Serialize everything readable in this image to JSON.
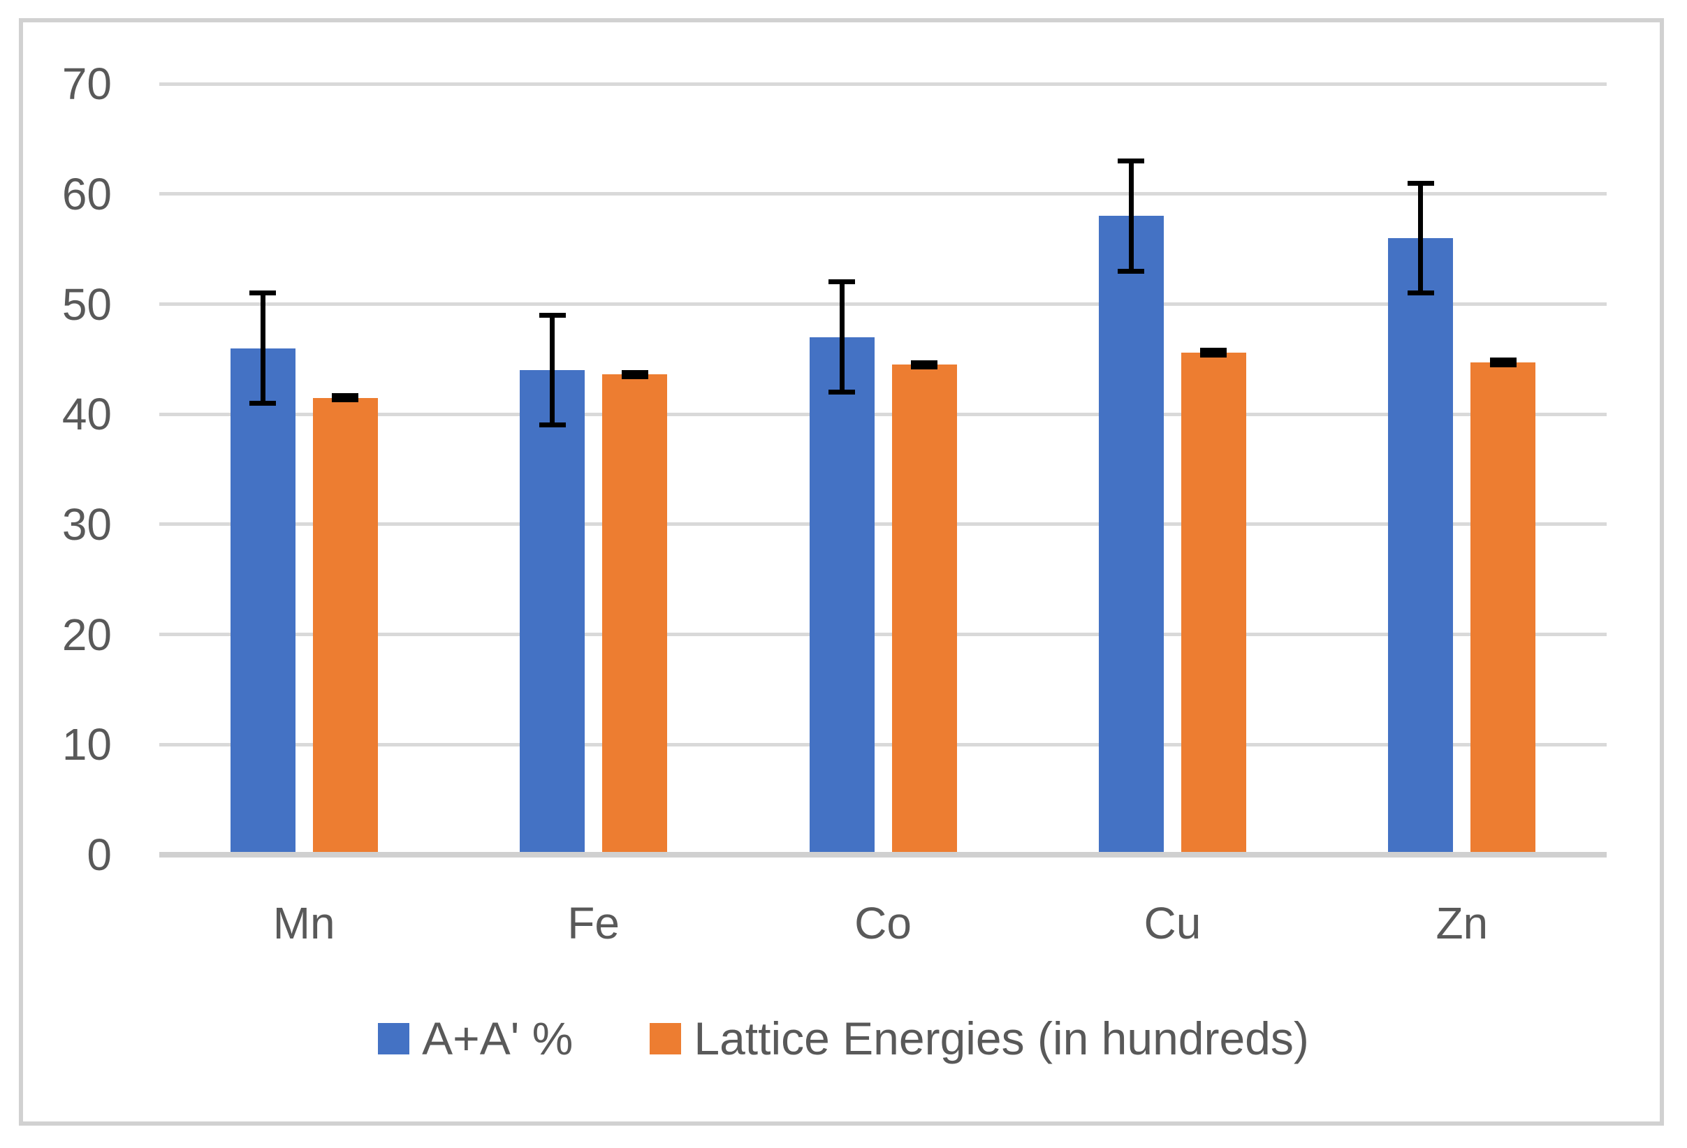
{
  "chart_data": {
    "type": "bar",
    "title": "",
    "categories": [
      "Mn",
      "Fe",
      "Co",
      "Cu",
      "Zn"
    ],
    "series": [
      {
        "name": "A+A' %",
        "color": "#4472C4",
        "values": [
          46,
          44,
          47,
          58,
          56
        ],
        "error_plus": [
          5,
          5,
          5,
          5,
          5
        ],
        "error_minus": [
          5,
          5,
          5,
          5,
          5
        ]
      },
      {
        "name": "Lattice Energies (in hundreds)",
        "color": "#ED7D31",
        "values": [
          41.5,
          43.6,
          44.5,
          45.6,
          44.7
        ],
        "error_plus": [
          0.2,
          0.2,
          0.2,
          0.2,
          0.2
        ],
        "error_minus": [
          0.2,
          0.2,
          0.2,
          0.2,
          0.2
        ]
      }
    ],
    "xlabel": "",
    "ylabel": "",
    "ylim": [
      0,
      70
    ],
    "yticks": [
      0,
      10,
      20,
      30,
      40,
      50,
      60,
      70
    ],
    "grid": "horizontal",
    "legend_position": "bottom",
    "error_bars": true
  },
  "colors": {
    "grid": "#D9D9D9",
    "axis": "#D0D0D0",
    "text": "#595959",
    "border": "#D1D1D1",
    "error_bar": "#000000",
    "background": "#FFFFFF"
  }
}
